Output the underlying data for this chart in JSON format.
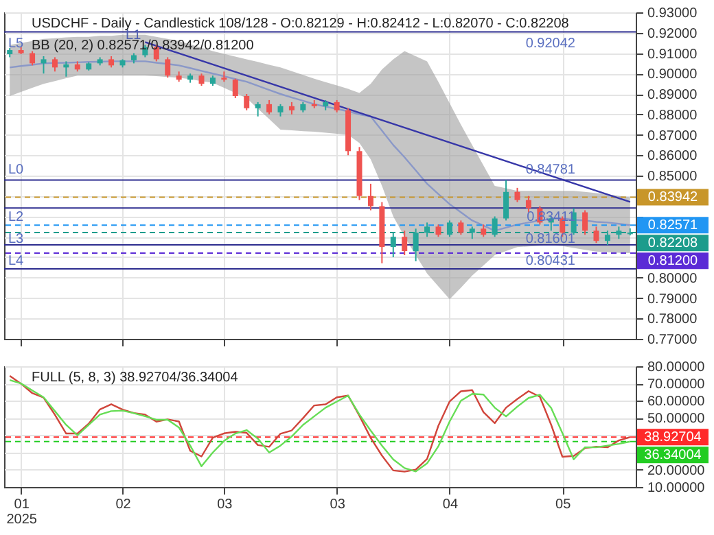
{
  "chart_data": [
    {
      "type": "candlestick",
      "title": "USDCHF - Daily - Candlestick    108/128 - O:0.82129 - H:0.82412 - L:0.82070 - C:0.82208",
      "subtitle": "BB (20, 2)    0.82571/0.83942/0.81200",
      "categories": [
        null,
        null,
        null,
        null,
        null,
        null,
        null,
        null,
        null,
        null,
        null,
        null,
        null,
        null,
        null,
        null,
        null,
        null,
        null,
        null,
        null,
        null,
        null,
        null,
        null,
        null,
        null,
        null,
        null,
        null,
        null,
        null,
        null,
        null,
        null,
        null,
        null,
        null,
        null,
        null,
        null,
        null,
        null,
        null,
        null,
        null,
        null,
        null,
        null,
        null,
        null,
        null,
        null,
        null,
        null,
        null
      ],
      "ohlc": [
        [
          0.9095,
          0.9125,
          0.908,
          0.9115
        ],
        [
          0.9115,
          0.913,
          0.9095,
          0.91
        ],
        [
          0.91,
          0.911,
          0.904,
          0.905
        ],
        [
          0.905,
          0.9085,
          0.9,
          0.907
        ],
        [
          0.907,
          0.908,
          0.901,
          0.903
        ],
        [
          0.903,
          0.906,
          0.8985,
          0.9045
        ],
        [
          0.9045,
          0.906,
          0.901,
          0.902
        ],
        [
          0.902,
          0.9055,
          0.9015,
          0.905
        ],
        [
          0.905,
          0.908,
          0.904,
          0.907
        ],
        [
          0.907,
          0.9085,
          0.903,
          0.904
        ],
        [
          0.904,
          0.907,
          0.903,
          0.9065
        ],
        [
          0.9065,
          0.91,
          0.905,
          0.909
        ],
        [
          0.909,
          0.914,
          0.908,
          0.913
        ],
        [
          0.913,
          0.914,
          0.906,
          0.907
        ],
        [
          0.907,
          0.908,
          0.898,
          0.899
        ],
        [
          0.899,
          0.901,
          0.896,
          0.897
        ],
        [
          0.897,
          0.9,
          0.8955,
          0.899
        ],
        [
          0.899,
          0.9,
          0.894,
          0.895
        ],
        [
          0.895,
          0.899,
          0.894,
          0.898
        ],
        [
          0.898,
          0.901,
          0.896,
          0.897
        ],
        [
          0.897,
          0.8975,
          0.888,
          0.889
        ],
        [
          0.889,
          0.89,
          0.882,
          0.883
        ],
        [
          0.883,
          0.886,
          0.879,
          0.885
        ],
        [
          0.885,
          0.887,
          0.88,
          0.881
        ],
        [
          0.881,
          0.885,
          0.879,
          0.884
        ],
        [
          0.884,
          0.886,
          0.88,
          0.882
        ],
        [
          0.882,
          0.886,
          0.881,
          0.885
        ],
        [
          0.885,
          0.887,
          0.883,
          0.884
        ],
        [
          0.884,
          0.887,
          0.882,
          0.886
        ],
        [
          0.886,
          0.887,
          0.881,
          0.882
        ],
        [
          0.882,
          0.883,
          0.86,
          0.862
        ],
        [
          0.862,
          0.864,
          0.838,
          0.84
        ],
        [
          0.84,
          0.846,
          0.833,
          0.835
        ],
        [
          0.835,
          0.837,
          0.807,
          0.815
        ],
        [
          0.815,
          0.822,
          0.81,
          0.82
        ],
        [
          0.82,
          0.823,
          0.811,
          0.813
        ],
        [
          0.813,
          0.824,
          0.808,
          0.822
        ],
        [
          0.822,
          0.827,
          0.82,
          0.825
        ],
        [
          0.825,
          0.826,
          0.82,
          0.821
        ],
        [
          0.821,
          0.828,
          0.82,
          0.827
        ],
        [
          0.827,
          0.828,
          0.821,
          0.822
        ],
        [
          0.822,
          0.825,
          0.819,
          0.824
        ],
        [
          0.824,
          0.826,
          0.82,
          0.821
        ],
        [
          0.821,
          0.83,
          0.82,
          0.829
        ],
        [
          0.829,
          0.8478,
          0.828,
          0.842
        ],
        [
          0.842,
          0.844,
          0.837,
          0.838
        ],
        [
          0.838,
          0.84,
          0.832,
          0.834
        ],
        [
          0.834,
          0.835,
          0.826,
          0.827
        ],
        [
          0.827,
          0.83,
          0.823,
          0.829
        ],
        [
          0.829,
          0.83,
          0.82,
          0.822
        ],
        [
          0.822,
          0.834,
          0.821,
          0.832
        ],
        [
          0.832,
          0.833,
          0.821,
          0.823
        ],
        [
          0.823,
          0.825,
          0.817,
          0.818
        ],
        [
          0.818,
          0.823,
          0.816,
          0.821
        ],
        [
          0.821,
          0.825,
          0.819,
          0.823
        ],
        [
          0.82129,
          0.82412,
          0.8207,
          0.82208
        ]
      ],
      "colors": [
        "#26a69a",
        "#ef5350",
        "#ef5350",
        "#26a69a",
        "#ef5350",
        "#26a69a",
        "#ef5350",
        "#26a69a",
        "#26a69a",
        "#ef5350",
        "#26a69a",
        "#26a69a",
        "#26a69a",
        "#ef5350",
        "#ef5350",
        "#ef5350",
        "#26a69a",
        "#ef5350",
        "#26a69a",
        "#ef5350",
        "#ef5350",
        "#ef5350",
        "#26a69a",
        "#ef5350",
        "#26a69a",
        "#ef5350",
        "#26a69a",
        "#ef5350",
        "#26a69a",
        "#ef5350",
        "#ef5350",
        "#ef5350",
        "#ef5350",
        "#ef5350",
        "#26a69a",
        "#ef5350",
        "#26a69a",
        "#26a69a",
        "#ef5350",
        "#26a69a",
        "#ef5350",
        "#26a69a",
        "#ef5350",
        "#26a69a",
        "#26a69a",
        "#ef5350",
        "#ef5350",
        "#ef5350",
        "#26a69a",
        "#ef5350",
        "#26a69a",
        "#ef5350",
        "#ef5350",
        "#26a69a",
        "#26a69a",
        "#26a69a"
      ],
      "series": [
        {
          "type": "line",
          "color": "#8a98c8",
          "values": [
            0.903,
            0.9037,
            0.9043,
            0.905,
            0.9052,
            0.9053,
            0.9055,
            0.9057,
            0.9058,
            0.906,
            0.906,
            0.906,
            0.906,
            0.9053,
            0.9047,
            0.904,
            0.9027,
            0.9013,
            0.9,
            0.8987,
            0.8973,
            0.896,
            0.894,
            0.892,
            0.89,
            0.8883,
            0.8867,
            0.885,
            0.8838,
            0.8827,
            0.8815,
            0.88,
            0.879,
            0.872,
            0.865,
            0.859,
            0.8525,
            0.846,
            0.841,
            0.836,
            0.832,
            0.828,
            0.8255,
            0.823,
            0.8245,
            0.826,
            0.827,
            0.828,
            0.8288,
            0.829,
            0.8283,
            0.828,
            0.8273,
            0.827,
            0.8264,
            0.82571
          ],
          "lower": [
            0.889,
            0.891,
            0.893,
            0.895,
            0.8963,
            0.8977,
            0.899,
            0.899,
            0.899,
            0.899,
            0.899,
            0.899,
            0.899,
            0.8987,
            0.8983,
            0.898,
            0.8972,
            0.8963,
            0.8955,
            0.893,
            0.8905,
            0.888,
            0.8828,
            0.8777,
            0.8725,
            0.8722,
            0.8718,
            0.8715,
            0.871,
            0.8705,
            0.87,
            0.866,
            0.858,
            0.845,
            0.83,
            0.82,
            0.811,
            0.802,
            0.7957,
            0.7894,
            0.795,
            0.801,
            0.806,
            0.811,
            0.813,
            0.815,
            0.8153,
            0.8156,
            0.8159,
            0.8155,
            0.8145,
            0.8136,
            0.8128,
            0.8124,
            0.8122,
            0.812
          ],
          "upper": [
            0.914,
            0.915,
            0.916,
            0.917,
            0.9173,
            0.9177,
            0.918,
            0.918,
            0.9185,
            0.9185,
            0.919,
            0.919,
            0.919,
            0.918,
            0.917,
            0.916,
            0.9143,
            0.9127,
            0.911,
            0.9097,
            0.9083,
            0.907,
            0.9057,
            0.9043,
            0.903,
            0.9012,
            0.8993,
            0.8975,
            0.8958,
            0.8942,
            0.8925,
            0.8905,
            0.895,
            0.902,
            0.907,
            0.911,
            0.9085,
            0.906,
            0.896,
            0.8855,
            0.875,
            0.865,
            0.855,
            0.845,
            0.8438,
            0.8425,
            0.8425,
            0.8425,
            0.8425,
            0.8425,
            0.8425,
            0.842,
            0.8414,
            0.8408,
            0.8401,
            0.83942
          ]
        },
        {
          "type": "line",
          "name": "L1",
          "color": "#3636a8",
          "values": [
            null,
            null,
            null,
            null,
            null,
            null,
            null,
            null,
            null,
            null,
            null,
            null,
            0.9154,
            null,
            null,
            null,
            null,
            null,
            null,
            null,
            null,
            null,
            null,
            null,
            null,
            null,
            null,
            null,
            null,
            null,
            null,
            null,
            null,
            null,
            null,
            null,
            null,
            null,
            null,
            null,
            null,
            null,
            null,
            null,
            null,
            null,
            null,
            null,
            null,
            null,
            null,
            null,
            null,
            null,
            null,
            0.8371
          ]
        }
      ],
      "ylim": [
        0.77,
        0.93
      ],
      "yticks": [
        {
          "value": 0.77,
          "label": "0.77000"
        },
        {
          "value": 0.78,
          "label": "0.78000"
        },
        {
          "value": 0.79,
          "label": "0.79000"
        },
        {
          "value": 0.8,
          "label": "0.80000"
        },
        {
          "value": 0.81,
          "label": null
        },
        {
          "value": 0.82,
          "label": null
        },
        {
          "value": 0.83,
          "label": null
        },
        {
          "value": 0.84,
          "label": null
        },
        {
          "value": 0.85,
          "label": "0.85000"
        },
        {
          "value": 0.86,
          "label": "0.86000"
        },
        {
          "value": 0.87,
          "label": "0.87000"
        },
        {
          "value": 0.88,
          "label": "0.88000"
        },
        {
          "value": 0.89,
          "label": "0.89000"
        },
        {
          "value": 0.9,
          "label": "0.90000"
        },
        {
          "value": 0.91,
          "label": "0.91000"
        },
        {
          "value": 0.92,
          "label": "0.92000"
        },
        {
          "value": 0.93,
          "label": "0.93000"
        }
      ],
      "grid": true,
      "tick_labels": "y",
      "ref_lines": [
        {
          "axis": "y",
          "value": 0.92042,
          "label": "0.92042",
          "color": "#2d2d8f",
          "line_style": "solid"
        },
        {
          "axis": "y",
          "value": 0.84781,
          "label": "0.84781",
          "color": "#2d2d8f",
          "line_style": "solid"
        },
        {
          "axis": "y",
          "value": 0.83411,
          "label": "0.83411",
          "color": "#2d2d8f",
          "line_style": "solid"
        },
        {
          "axis": "y",
          "value": 0.81601,
          "label": "0.81601",
          "color": "#2d2d8f",
          "line_style": "solid"
        },
        {
          "axis": "y",
          "value": 0.80431,
          "label": "0.80431",
          "color": "#2d2d8f",
          "line_style": "solid"
        },
        {
          "axis": "y",
          "value": 0.83942,
          "label": "0.83942",
          "color": "#c8962a",
          "line_style": "dashed"
        },
        {
          "axis": "y",
          "value": 0.82571,
          "label": "0.82571",
          "color": "#2196f3",
          "line_style": "dashed"
        },
        {
          "axis": "y",
          "value": 0.82208,
          "label": "0.82208",
          "color": "#1c9c8c",
          "line_style": "dashed"
        },
        {
          "axis": "y",
          "value": 0.812,
          "label": "0.81200",
          "color": "#5b2bd6",
          "line_style": "dashed"
        }
      ],
      "annotations": [
        {
          "text": "L5",
          "y": 0.92042
        },
        {
          "text": "L0",
          "y": 0.84781
        },
        {
          "text": "L2",
          "y": 0.83411
        },
        {
          "text": "L3",
          "y": 0.81601
        },
        {
          "text": "L4",
          "y": 0.80431
        }
      ]
    },
    {
      "type": "line",
      "title": "FULL (5, 8, 3)    38.92704/36.34004",
      "categories": [
        null,
        "01\n2025",
        null,
        null,
        null,
        null,
        null,
        null,
        null,
        null,
        "02",
        null,
        null,
        null,
        null,
        null,
        null,
        null,
        null,
        "03",
        null,
        null,
        null,
        null,
        null,
        null,
        null,
        null,
        null,
        "03",
        null,
        null,
        null,
        null,
        null,
        null,
        null,
        null,
        null,
        "04",
        null,
        null,
        null,
        null,
        null,
        null,
        null,
        null,
        null,
        "05",
        null,
        null,
        null,
        null,
        null,
        null
      ],
      "series": [
        {
          "color": "#d0453b",
          "values": [
            74.4,
            69.9,
            64.4,
            61.8,
            51.9,
            41,
            41,
            46.7,
            55,
            58,
            54.9,
            52.9,
            52,
            47.9,
            49.2,
            48,
            31,
            27.7,
            38.6,
            41.1,
            42,
            41.4,
            34.3,
            33.3,
            40.9,
            42.8,
            49.9,
            57.3,
            57.9,
            62,
            63,
            51.3,
            38.5,
            28.2,
            19.6,
            18.9,
            20.1,
            26.3,
            45.5,
            59.6,
            65.5,
            66.2,
            53.4,
            47,
            56,
            61,
            65.6,
            62.3,
            46.1,
            27.5,
            28,
            32.5,
            33.4,
            33,
            37,
            38.92704
          ]
        },
        {
          "color": "#66dd55",
          "values": [
            72,
            70,
            66,
            62,
            54,
            46,
            40,
            46,
            52,
            54,
            54.3,
            52.8,
            51,
            49,
            49,
            44.5,
            34,
            22,
            30,
            36.7,
            41,
            43,
            38,
            30,
            34,
            39.3,
            46,
            51,
            56,
            59.5,
            63,
            52,
            42.7,
            34,
            26,
            21,
            19,
            23.7,
            33.6,
            48,
            60,
            64,
            63.6,
            56,
            50.9,
            56.6,
            61.6,
            63.5,
            55.8,
            41.2,
            26,
            33,
            33,
            34,
            35,
            36.34004
          ]
        }
      ],
      "ylim": [
        10,
        80
      ],
      "yticks": [
        {
          "value": 10,
          "label": "10.00000"
        },
        {
          "value": 20,
          "label": "20.00000"
        },
        {
          "value": 30,
          "label": null
        },
        {
          "value": 40,
          "label": null
        },
        {
          "value": 50,
          "label": "50.00000"
        },
        {
          "value": 60,
          "label": "60.00000"
        },
        {
          "value": 70,
          "label": "70.00000"
        },
        {
          "value": 80,
          "label": "80.00000"
        }
      ],
      "grid": true,
      "ref_lines": [
        {
          "axis": "y",
          "value": 38.92704,
          "label": "38.92704",
          "color": "#ff2a2a",
          "line_style": "dashed"
        },
        {
          "axis": "y",
          "value": 36.34004,
          "label": "36.34004",
          "color": "#22cc22",
          "line_style": "dashed"
        }
      ]
    }
  ]
}
